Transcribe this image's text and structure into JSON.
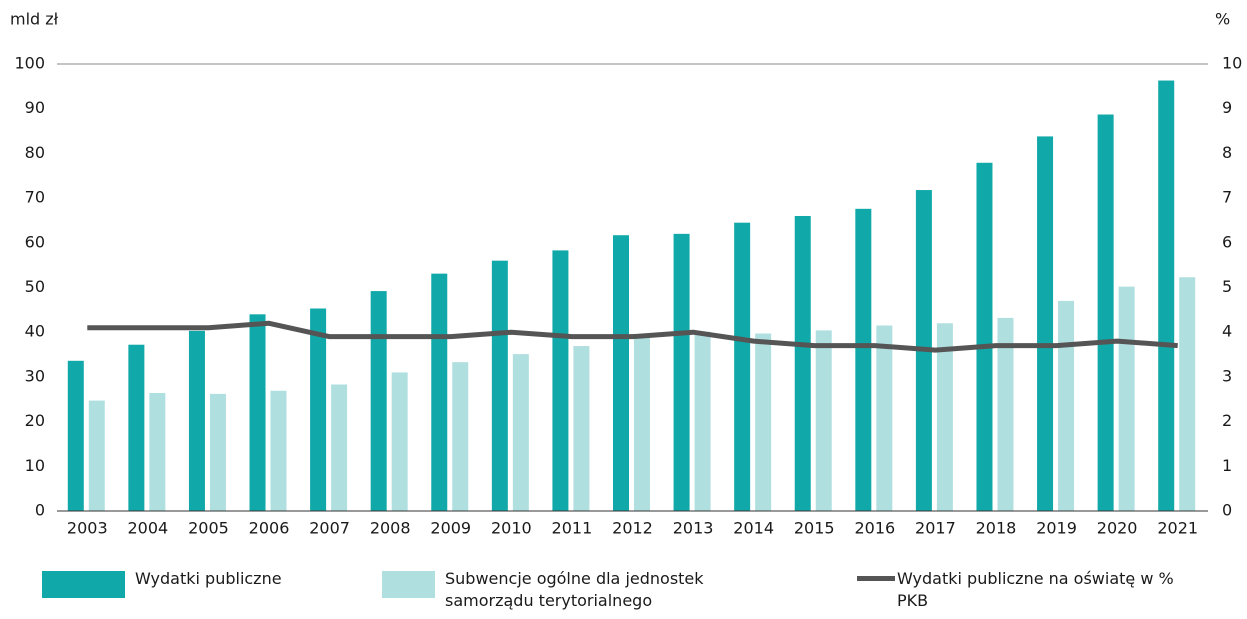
{
  "chart_data": {
    "type": "bar",
    "y_label": "mld zł",
    "y2_label": "%",
    "categories": [
      "2003",
      "2004",
      "2005",
      "2006",
      "2007",
      "2008",
      "2009",
      "2010",
      "2011",
      "2012",
      "2013",
      "2014",
      "2015",
      "2016",
      "2017",
      "2018",
      "2019",
      "2020",
      "2021"
    ],
    "series": [
      {
        "name": "Wydatki publiczne",
        "type": "bar",
        "color": "#10a8a8",
        "values": [
          33.6,
          37.2,
          40.3,
          44.0,
          45.3,
          49.2,
          53.1,
          56.0,
          58.3,
          61.7,
          62.0,
          64.5,
          66.0,
          67.6,
          71.8,
          77.9,
          83.8,
          88.7,
          96.3
        ]
      },
      {
        "name": "Subwencje ogólne dla jednostek samorządu terytorialnego",
        "type": "bar",
        "color": "#b0dfe0",
        "values": [
          24.7,
          26.4,
          26.2,
          26.9,
          28.3,
          31.0,
          33.3,
          35.1,
          36.9,
          39.5,
          40.1,
          39.7,
          40.4,
          41.5,
          42.0,
          43.2,
          47.0,
          50.2,
          52.3
        ]
      },
      {
        "name": "Wydatki publiczne na oświatę w % PKB",
        "type": "line",
        "axis": "y2",
        "color": "#555555",
        "values": [
          4.1,
          4.1,
          4.1,
          4.2,
          3.9,
          3.9,
          3.9,
          4.0,
          3.9,
          3.9,
          4.0,
          3.8,
          3.7,
          3.7,
          3.6,
          3.7,
          3.7,
          3.8,
          3.7
        ]
      }
    ],
    "ylim": [
      0,
      100
    ],
    "yticks": [
      0,
      10,
      20,
      30,
      40,
      50,
      60,
      70,
      80,
      90,
      100
    ],
    "y2lim": [
      0,
      10
    ],
    "y2ticks": [
      0,
      1,
      2,
      3,
      4,
      5,
      6,
      7,
      8,
      9,
      10
    ]
  }
}
